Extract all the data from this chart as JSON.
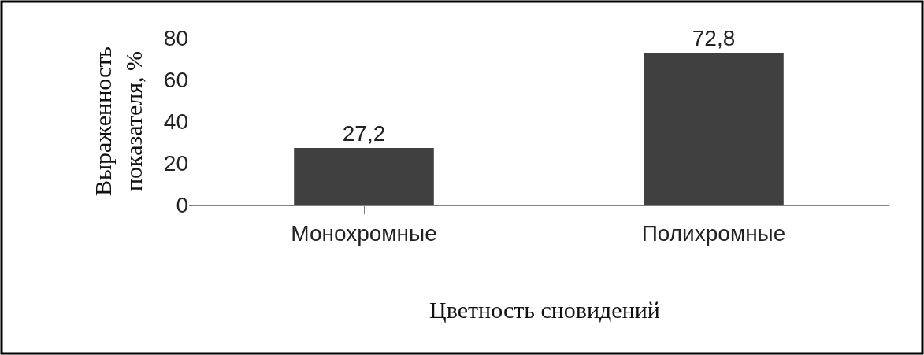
{
  "chart_data": {
    "type": "bar",
    "categories": [
      "Монохромные",
      "Полихромные"
    ],
    "values": [
      27.2,
      72.8
    ],
    "value_labels": [
      "27,2",
      "72,8"
    ],
    "color": "#404040",
    "ylabel": "Выраженность показателя, %",
    "xlabel": "Цветность сновидений",
    "ylim": [
      0,
      80
    ],
    "yticks": [
      0,
      20,
      40,
      60,
      80
    ]
  }
}
